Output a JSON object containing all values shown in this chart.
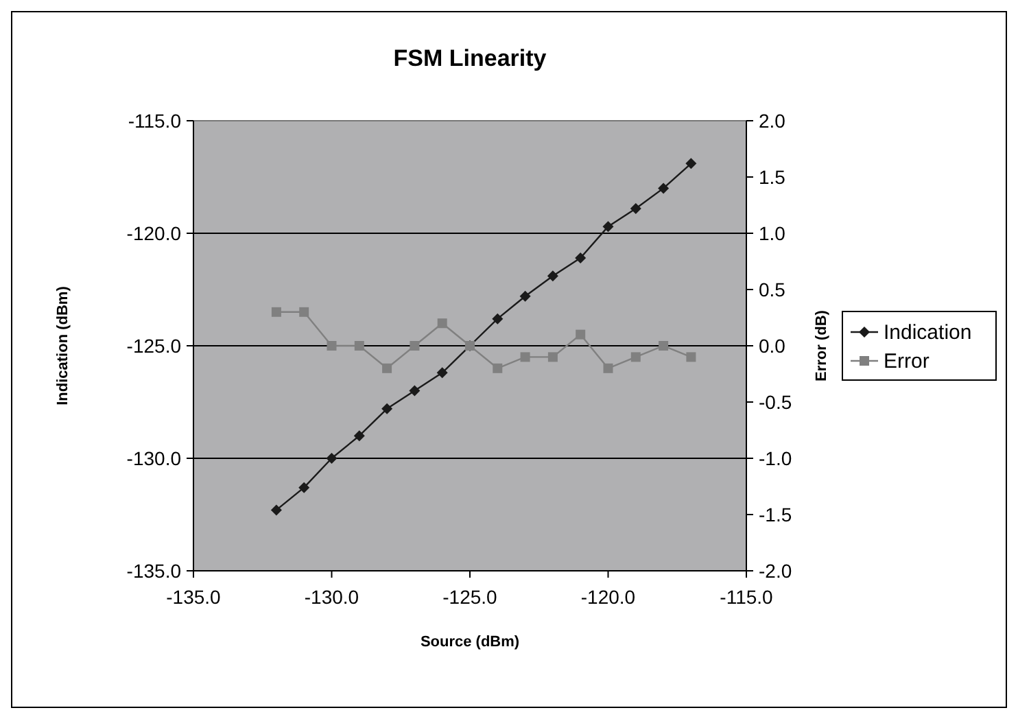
{
  "chart_data": {
    "type": "line",
    "title": "FSM Linearity",
    "xlabel": "Source (dBm)",
    "ylabel": "Indication (dBm)",
    "y2label": "Error (dB)",
    "x": [
      -132,
      -131,
      -130,
      -129,
      -128,
      -127,
      -126,
      -125,
      -124,
      -123,
      -122,
      -121,
      -120,
      -119,
      -118,
      -117
    ],
    "series": [
      {
        "name": "Indication",
        "color": "#1a1a1a",
        "marker": "diamond",
        "values": [
          -132.3,
          -131.3,
          -130.0,
          -129.0,
          -127.8,
          -127.0,
          -126.2,
          -125.0,
          -123.8,
          -122.8,
          -121.9,
          -121.1,
          -119.7,
          -118.9,
          -118.0,
          -116.9
        ]
      },
      {
        "name": "Error",
        "color": "#808080",
        "marker": "square",
        "axis": "y2",
        "values": [
          0.3,
          0.3,
          0.0,
          0.0,
          -0.2,
          0.0,
          0.2,
          0.0,
          -0.2,
          -0.1,
          -0.1,
          0.1,
          -0.2,
          -0.1,
          0.0,
          -0.1
        ]
      }
    ],
    "xlim": [
      -135,
      -115
    ],
    "xticks": [
      {
        "value": -135,
        "label": "-135.0"
      },
      {
        "value": -130,
        "label": "-130.0"
      },
      {
        "value": -125,
        "label": "-125.0"
      },
      {
        "value": -120,
        "label": "-120.0"
      },
      {
        "value": -115,
        "label": "-115.0"
      }
    ],
    "ylim": [
      -135,
      -115
    ],
    "yticks": [
      {
        "value": -135,
        "label": "-135.0"
      },
      {
        "value": -130,
        "label": "-130.0"
      },
      {
        "value": -125,
        "label": "-125.0"
      },
      {
        "value": -120,
        "label": "-120.0"
      },
      {
        "value": -115,
        "label": "-115.0"
      }
    ],
    "y2lim": [
      -2,
      2
    ],
    "y2ticks": [
      {
        "value": -2,
        "label": "-2.0"
      },
      {
        "value": -1.5,
        "label": "-1.5"
      },
      {
        "value": -1,
        "label": "-1.0"
      },
      {
        "value": -0.5,
        "label": "-0.5"
      },
      {
        "value": 0,
        "label": "0.0"
      },
      {
        "value": 0.5,
        "label": "0.5"
      },
      {
        "value": 1,
        "label": "1.0"
      },
      {
        "value": 1.5,
        "label": "1.5"
      },
      {
        "value": 2,
        "label": "2.0"
      }
    ],
    "grid": "y",
    "legend": "right",
    "line_style": "solid"
  }
}
